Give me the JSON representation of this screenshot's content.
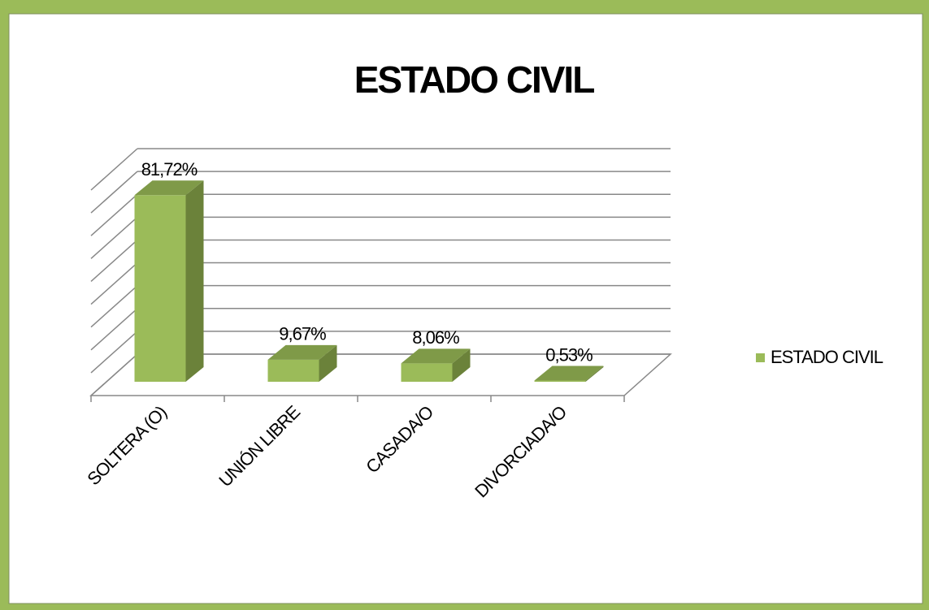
{
  "chart_data": {
    "type": "bar3d",
    "title": "ESTADO CIVIL",
    "categories": [
      "SOLTERA (O)",
      "UNIÓN LIBRE",
      "CASADA/O",
      "DIVORCIADA/O"
    ],
    "series": [
      {
        "name": "ESTADO CIVIL",
        "color": "#9bbb59",
        "values": [
          81.72,
          9.67,
          8.06,
          0.53
        ],
        "value_labels": [
          "81,72%",
          "9,67%",
          "8,06%",
          "0,53%"
        ]
      }
    ],
    "ylim": [
      0,
      90
    ],
    "yticks": [
      0,
      10,
      20,
      30,
      40,
      50,
      60,
      70,
      80,
      90
    ],
    "grid": true,
    "legend": "right"
  }
}
